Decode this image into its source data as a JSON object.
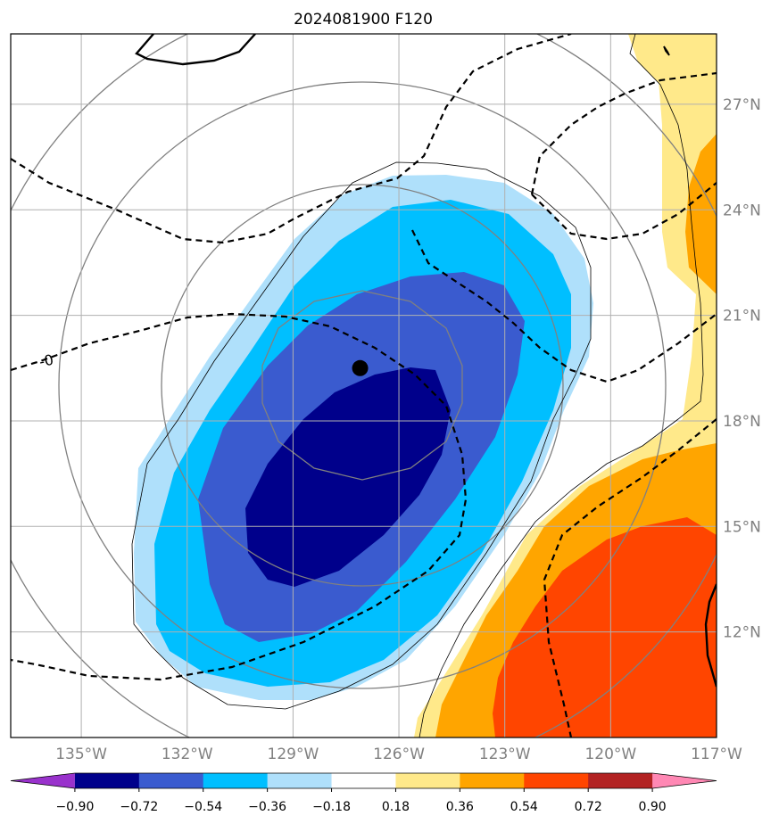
{
  "chart_data": {
    "type": "contour map",
    "title": "2024081900 F120",
    "lon_range": [
      -137,
      -117
    ],
    "lat_range": [
      9,
      29
    ],
    "lon_ticks": [
      {
        "value": -135,
        "label": "135°W"
      },
      {
        "value": -132,
        "label": "132°W"
      },
      {
        "value": -129,
        "label": "129°W"
      },
      {
        "value": -126,
        "label": "126°W"
      },
      {
        "value": -123,
        "label": "123°W"
      },
      {
        "value": -120,
        "label": "120°W"
      },
      {
        "value": -117,
        "label": "117°W"
      }
    ],
    "lat_ticks": [
      {
        "value": 12,
        "label": "12°N"
      },
      {
        "value": 15,
        "label": "15°N"
      },
      {
        "value": 18,
        "label": "18°N"
      },
      {
        "value": 21,
        "label": "21°N"
      },
      {
        "value": 24,
        "label": "24°N"
      },
      {
        "value": 27,
        "label": "27°N"
      }
    ],
    "gridlines": true,
    "storm_center": {
      "lon": -127.1,
      "lat": 19.5
    },
    "dashed_contour_label": "-0",
    "colorbar": {
      "orientation": "horizontal",
      "extend": "both",
      "boundaries": [
        -0.9,
        -0.72,
        -0.54,
        -0.36,
        -0.18,
        0.18,
        0.36,
        0.54,
        0.72,
        0.9
      ],
      "tick_labels": [
        "−0.90",
        "−0.72",
        "−0.54",
        "−0.36",
        "−0.18",
        "0.18",
        "0.36",
        "0.54",
        "0.72",
        "0.90"
      ],
      "colors": [
        "#9932cc",
        "#00008b",
        "#3a5bcf",
        "#00bfff",
        "#afe0fb",
        "#ffffff",
        "#ffe98a",
        "#ffa500",
        "#ff4500",
        "#b22222",
        "#ff88b4"
      ]
    },
    "filled_regions": [
      {
        "level": "0.18 to 0.36",
        "color": "#ffe98a"
      },
      {
        "level": "0.36 to 0.54",
        "color": "#ffa500"
      },
      {
        "level": "0.54 to 0.72",
        "color": "#ff4500"
      },
      {
        "level": "-0.36 to -0.18",
        "color": "#afe0fb"
      },
      {
        "level": "-0.54 to -0.36",
        "color": "#00bfff"
      },
      {
        "level": "-0.72 to -0.54",
        "color": "#3a5bcf"
      },
      {
        "level": "-0.90 to -0.72",
        "color": "#00008b"
      }
    ]
  }
}
